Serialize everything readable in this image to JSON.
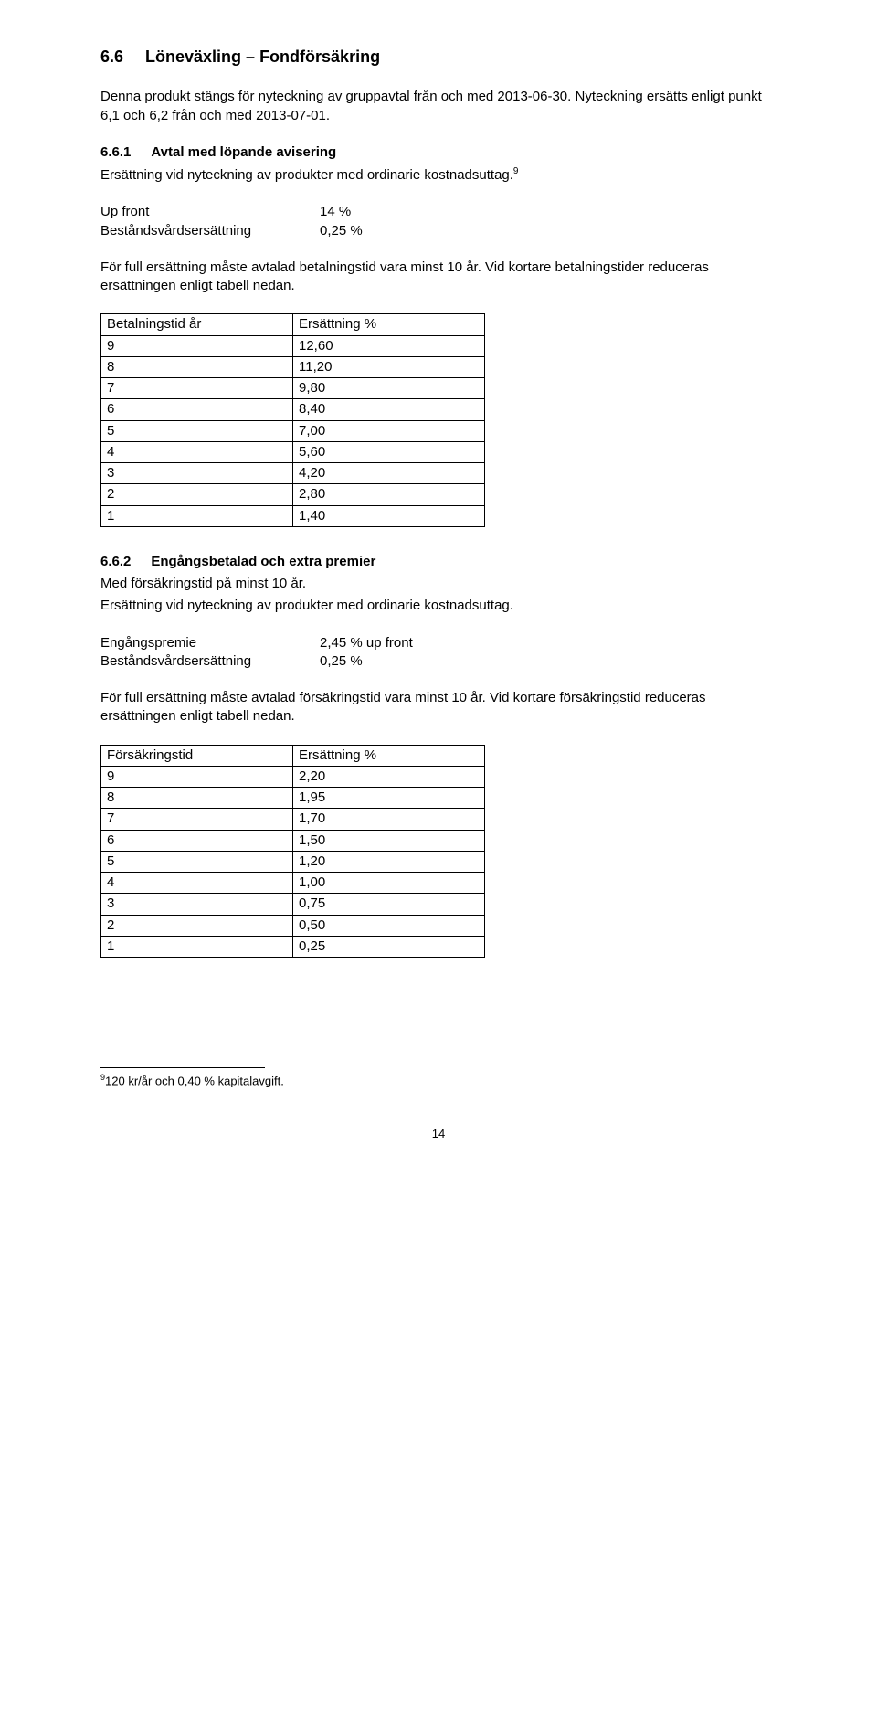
{
  "heading": {
    "num": "6.6",
    "title": "Löneväxling – Fondförsäkring"
  },
  "intro": "Denna produkt stängs för nyteckning av gruppavtal från och med 2013-06-30. Nyteckning ersätts enligt punkt 6,1 och 6,2  från och med 2013-07-01.",
  "sec1": {
    "num": "6.6.1",
    "title": "Avtal med löpande avisering",
    "line": "Ersättning vid nyteckning av produkter med ordinarie kostnadsuttag.",
    "sup": "9",
    "rows": [
      {
        "k": "Up front",
        "v": "14 %"
      },
      {
        "k": "Beståndsvårdsersättning",
        "v": "0,25 %"
      }
    ],
    "cond": "För full ersättning måste avtalad betalningstid vara minst 10 år. Vid kortare betalningstider reduceras ersättningen enligt tabell nedan."
  },
  "table1": {
    "headers": [
      "Betalningstid år",
      "Ersättning %"
    ],
    "rows": [
      [
        "9",
        "12,60"
      ],
      [
        "8",
        "11,20"
      ],
      [
        "7",
        "9,80"
      ],
      [
        "6",
        "8,40"
      ],
      [
        "5",
        "7,00"
      ],
      [
        "4",
        "5,60"
      ],
      [
        "3",
        "4,20"
      ],
      [
        "2",
        "2,80"
      ],
      [
        "1",
        "1,40"
      ]
    ]
  },
  "sec2": {
    "num": "6.6.2",
    "title": "Engångsbetalad och extra premier",
    "line1": "Med försäkringstid på minst 10 år.",
    "line2": "Ersättning vid nyteckning av produkter med ordinarie kostnadsuttag.",
    "rows": [
      {
        "k": "Engångspremie",
        "v": "2,45 % up front"
      },
      {
        "k": "Beståndsvårdsersättning",
        "v": "0,25 %"
      }
    ],
    "cond": "För full ersättning måste avtalad försäkringstid vara minst 10 år. Vid kortare försäkringstid reduceras ersättningen enligt tabell nedan."
  },
  "table2": {
    "headers": [
      "Försäkringstid",
      "Ersättning %"
    ],
    "rows": [
      [
        "9",
        "2,20"
      ],
      [
        "8",
        "1,95"
      ],
      [
        "7",
        "1,70"
      ],
      [
        "6",
        "1,50"
      ],
      [
        "5",
        "1,20"
      ],
      [
        "4",
        "1,00"
      ],
      [
        "3",
        "0,75"
      ],
      [
        "2",
        "0,50"
      ],
      [
        "1",
        "0,25"
      ]
    ]
  },
  "footnote": {
    "num": "9",
    "text": "120 kr/år och 0,40 % kapitalavgift."
  },
  "pageNumber": "14"
}
